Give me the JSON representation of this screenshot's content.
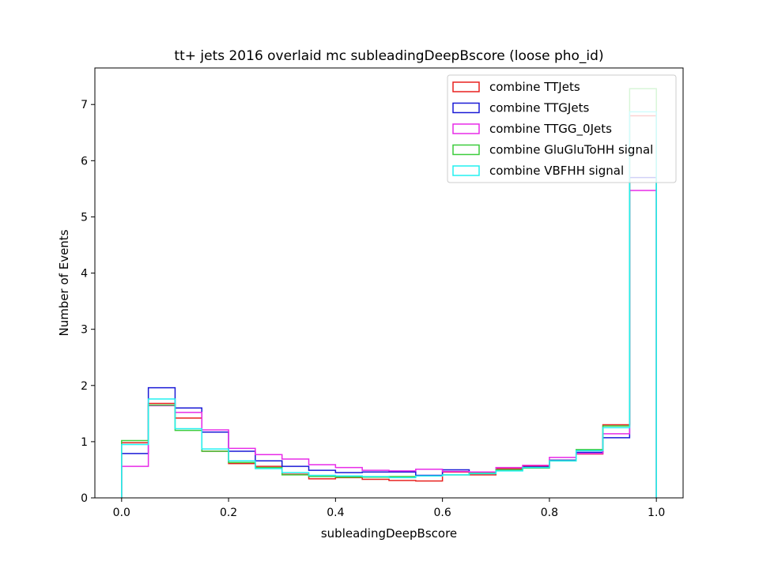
{
  "chart_data": {
    "type": "histogram",
    "title": "tt+ jets 2016 overlaid mc subleadingDeepBscore (loose pho_id)",
    "xlabel": "subleadingDeepBscore",
    "ylabel": "Number of Events",
    "xlim": [
      -0.05,
      1.05
    ],
    "ylim": [
      0,
      7.65
    ],
    "xticks": [
      0.0,
      0.2,
      0.4,
      0.6,
      0.8,
      1.0
    ],
    "xtick_labels": [
      "0.0",
      "0.2",
      "0.4",
      "0.6",
      "0.8",
      "1.0"
    ],
    "yticks": [
      0,
      1,
      2,
      3,
      4,
      5,
      6,
      7
    ],
    "ytick_labels": [
      "0",
      "1",
      "2",
      "3",
      "4",
      "5",
      "6",
      "7"
    ],
    "grid": false,
    "legend_position": "top-right",
    "bin_edges": [
      0.0,
      0.05,
      0.1,
      0.15,
      0.2,
      0.25,
      0.3,
      0.35,
      0.4,
      0.45,
      0.5,
      0.55,
      0.6,
      0.65,
      0.7,
      0.75,
      0.8,
      0.85,
      0.9,
      0.95,
      1.0
    ],
    "series": [
      {
        "name": "combine TTJets",
        "color": "#e8211f",
        "values": [
          0.98,
          1.68,
          1.42,
          0.83,
          0.61,
          0.56,
          0.42,
          0.34,
          0.36,
          0.33,
          0.31,
          0.3,
          0.46,
          0.41,
          0.52,
          0.56,
          0.67,
          0.78,
          1.3,
          6.8
        ]
      },
      {
        "name": "combine TTGJets",
        "color": "#1a1ad6",
        "values": [
          0.79,
          1.96,
          1.6,
          1.17,
          0.83,
          0.66,
          0.56,
          0.49,
          0.45,
          0.46,
          0.46,
          0.4,
          0.5,
          0.45,
          0.5,
          0.55,
          0.67,
          0.81,
          1.07,
          5.7
        ]
      },
      {
        "name": "combine TTGG_0Jets",
        "color": "#e82be8",
        "values": [
          0.56,
          1.64,
          1.52,
          1.21,
          0.88,
          0.77,
          0.69,
          0.59,
          0.54,
          0.49,
          0.48,
          0.51,
          0.47,
          0.46,
          0.54,
          0.58,
          0.72,
          0.79,
          1.14,
          5.47
        ]
      },
      {
        "name": "combine GluGluToHH signal",
        "color": "#3ccc3c",
        "values": [
          1.02,
          1.65,
          1.2,
          0.83,
          0.63,
          0.54,
          0.41,
          0.38,
          0.37,
          0.37,
          0.38,
          0.39,
          0.41,
          0.44,
          0.5,
          0.53,
          0.66,
          0.86,
          1.28,
          7.28
        ]
      },
      {
        "name": "combine VBFHH signal",
        "color": "#22f0f0",
        "values": [
          0.95,
          1.76,
          1.23,
          0.87,
          0.66,
          0.52,
          0.45,
          0.4,
          0.39,
          0.38,
          0.36,
          0.39,
          0.41,
          0.43,
          0.48,
          0.54,
          0.66,
          0.84,
          1.25,
          6.87
        ]
      }
    ]
  }
}
